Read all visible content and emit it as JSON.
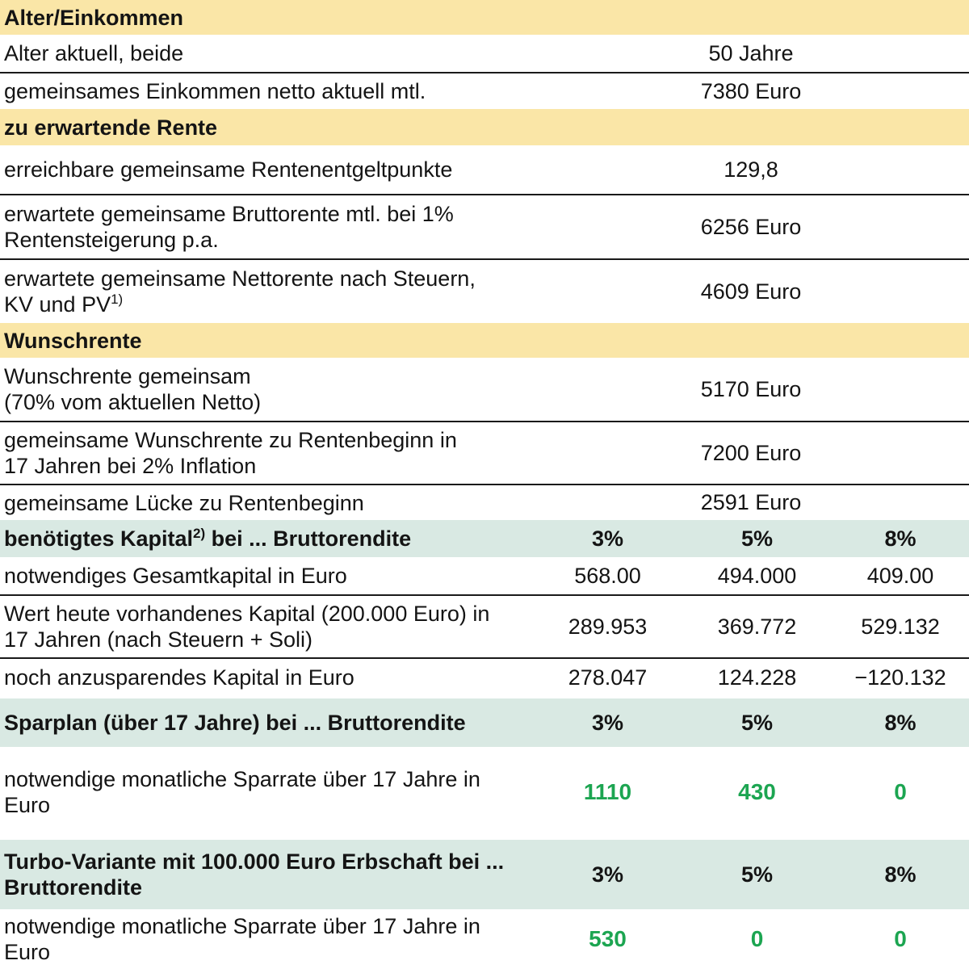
{
  "colors": {
    "section_yellow_bg": "#FAE6A7",
    "section_teal_bg": "#D9E9E3",
    "highlight_green_text": "#1CA551",
    "text": "#141414",
    "row_divider": "#1a1a1a"
  },
  "sections": [
    {
      "title": "Alter/Einkommen",
      "rows": [
        {
          "label": "Alter aktuell, beide",
          "value": "50 Jahre"
        },
        {
          "label": "gemeinsames Einkommen netto aktuell mtl.",
          "value": "7380 Euro"
        }
      ]
    },
    {
      "title": "zu erwartende Rente",
      "rows": [
        {
          "label": "erreichbare gemeinsame Rentenentgeltpunkte",
          "value": "129,8"
        },
        {
          "label": "erwartete gemeinsame Bruttorente mtl. bei 1%",
          "label2": "Rentensteigerung p.a.",
          "value": "6256 Euro"
        },
        {
          "label": "erwartete gemeinsame Nettorente nach Steuern,",
          "label2": "KV und PV",
          "label2_sup": "1)",
          "value": "4609 Euro"
        }
      ]
    },
    {
      "title": "Wunschrente",
      "rows": [
        {
          "label": "Wunschrente gemeinsam",
          "label2": "(70% vom aktuellen Netto)",
          "value": "5170 Euro"
        },
        {
          "label": "gemeinsame Wunschrente zu Rentenbeginn in",
          "label2": "17 Jahren bei 2% Inflation",
          "value": "7200 Euro"
        },
        {
          "label": "gemeinsame Lücke zu Rentenbeginn",
          "value": "2591 Euro"
        }
      ]
    },
    {
      "title_pre": "benötigtes Kapital",
      "title_sup": "2)",
      "title_post": " bei ... Bruttorendite",
      "cols": [
        "3%",
        "5%",
        "8%"
      ],
      "rows": [
        {
          "label": "notwendiges Gesamtkapital in Euro",
          "values": [
            "568.00",
            "494.000",
            "409.00"
          ]
        },
        {
          "label": "Wert heute vorhandenes Kapital (200.000 Euro) in",
          "label2": "17 Jahren (nach Steuern + Soli)",
          "values": [
            "289.953",
            "369.772",
            "529.132"
          ]
        },
        {
          "label": "noch anzusparendes Kapital in Euro",
          "values": [
            "278.047",
            "124.228",
            "−120.132"
          ]
        }
      ]
    },
    {
      "title": "Sparplan (über 17 Jahre) bei ... Bruttorendite",
      "cols": [
        "3%",
        "5%",
        "8%"
      ],
      "rows": [
        {
          "label": "notwendige monatliche Sparrate über 17 Jahre in",
          "label2": "Euro",
          "values": [
            "1110",
            "430",
            "0"
          ]
        }
      ]
    },
    {
      "title": "Turbo-Variante mit 100.000 Euro Erbschaft bei ...",
      "title2": "Bruttorendite",
      "cols": [
        "3%",
        "5%",
        "8%"
      ],
      "rows": [
        {
          "label": "notwendige monatliche Sparrate über 17 Jahre in",
          "label2": "Euro",
          "values": [
            "530",
            "0",
            "0"
          ]
        }
      ]
    }
  ]
}
